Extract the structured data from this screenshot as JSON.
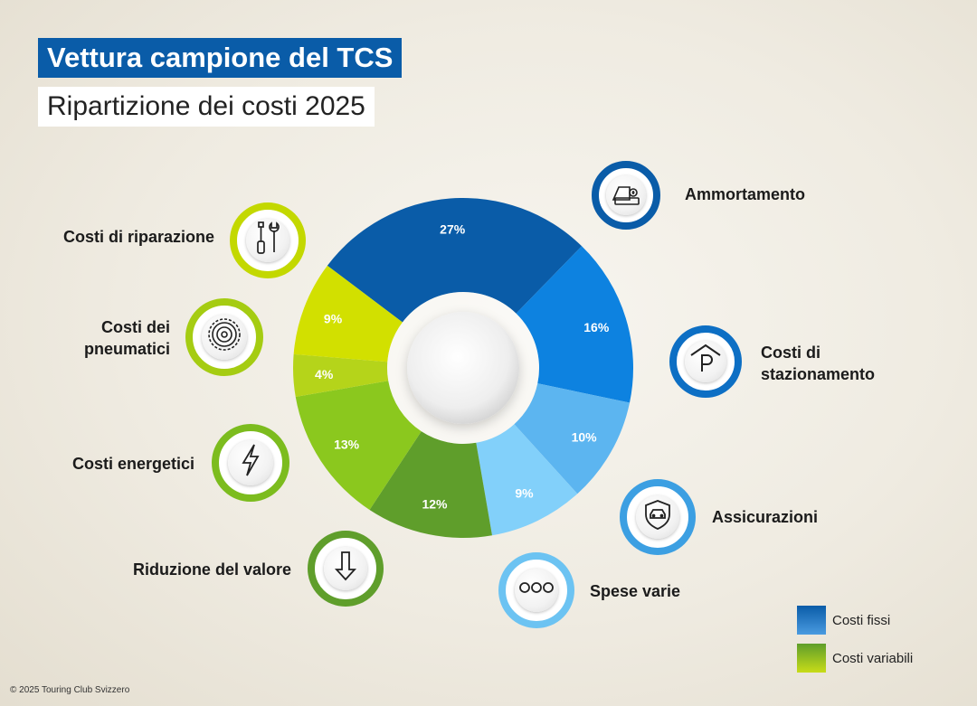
{
  "title": "Vettura campione del TCS",
  "subtitle": "Ripartizione dei costi 2025",
  "chart_data": {
    "type": "pie",
    "variant": "donut",
    "slices": [
      {
        "label": "Ammortamento",
        "value": 27,
        "display": "27%",
        "group": "Costi fissi",
        "color": "#0a5ca8"
      },
      {
        "label": "Costi di stazionamento",
        "value": 16,
        "display": "16%",
        "group": "Costi fissi",
        "color": "#0d82e0"
      },
      {
        "label": "Assicurazioni",
        "value": 10,
        "display": "10%",
        "group": "Costi fissi",
        "color": "#5cb5f0"
      },
      {
        "label": "Spese varie",
        "value": 9,
        "display": "9%",
        "group": "Costi fissi",
        "color": "#82d0fa"
      },
      {
        "label": "Riduzione del valore",
        "value": 12,
        "display": "12%",
        "group": "Costi variabili",
        "color": "#5f9e2b"
      },
      {
        "label": "Costi energetici",
        "value": 13,
        "display": "13%",
        "group": "Costi variabili",
        "color": "#8bc81e"
      },
      {
        "label": "Costi dei pneumatici",
        "value": 4,
        "display": "4%",
        "group": "Costi variabili",
        "color": "#b5d41a"
      },
      {
        "label": "Costi di riparazione",
        "value": 9,
        "display": "9%",
        "group": "Costi variabili",
        "color": "#d2e000"
      }
    ],
    "legend": [
      {
        "label": "Costi fissi",
        "color": "#0a5ca8"
      },
      {
        "label": "Costi variabili",
        "color": "#8bc81e"
      }
    ],
    "legend_position": "bottom-right"
  },
  "categories": {
    "ammortamento": {
      "label": "Ammortamento",
      "icon": "car-money-icon",
      "ring": "#0a5ca8"
    },
    "stazionamento": {
      "label": "Costi di stazionamento",
      "line1": "Costi di",
      "line2": "stazionamento",
      "icon": "parking-icon",
      "ring": "#0d6fc4"
    },
    "assicurazioni": {
      "label": "Assicurazioni",
      "icon": "shield-car-icon",
      "ring": "#3c9fe2"
    },
    "spese": {
      "label": "Spese varie",
      "icon": "dots-icon",
      "ring": "#6cc3f2"
    },
    "riduzione": {
      "label": "Riduzione del valore",
      "icon": "arrow-down-icon",
      "ring": "#5f9e2b"
    },
    "energetici": {
      "label": "Costi energetici",
      "icon": "lightning-icon",
      "ring": "#7cbc1e"
    },
    "pneumatici": {
      "label": "Costi dei pneumatici",
      "line1": "Costi dei",
      "line2": "pneumatici",
      "icon": "tire-icon",
      "ring": "#a5cc12"
    },
    "riparazione": {
      "label": "Costi di riparazione",
      "icon": "tools-icon",
      "ring": "#c3d800"
    }
  },
  "copyright": "© 2025 Touring Club Svizzero"
}
